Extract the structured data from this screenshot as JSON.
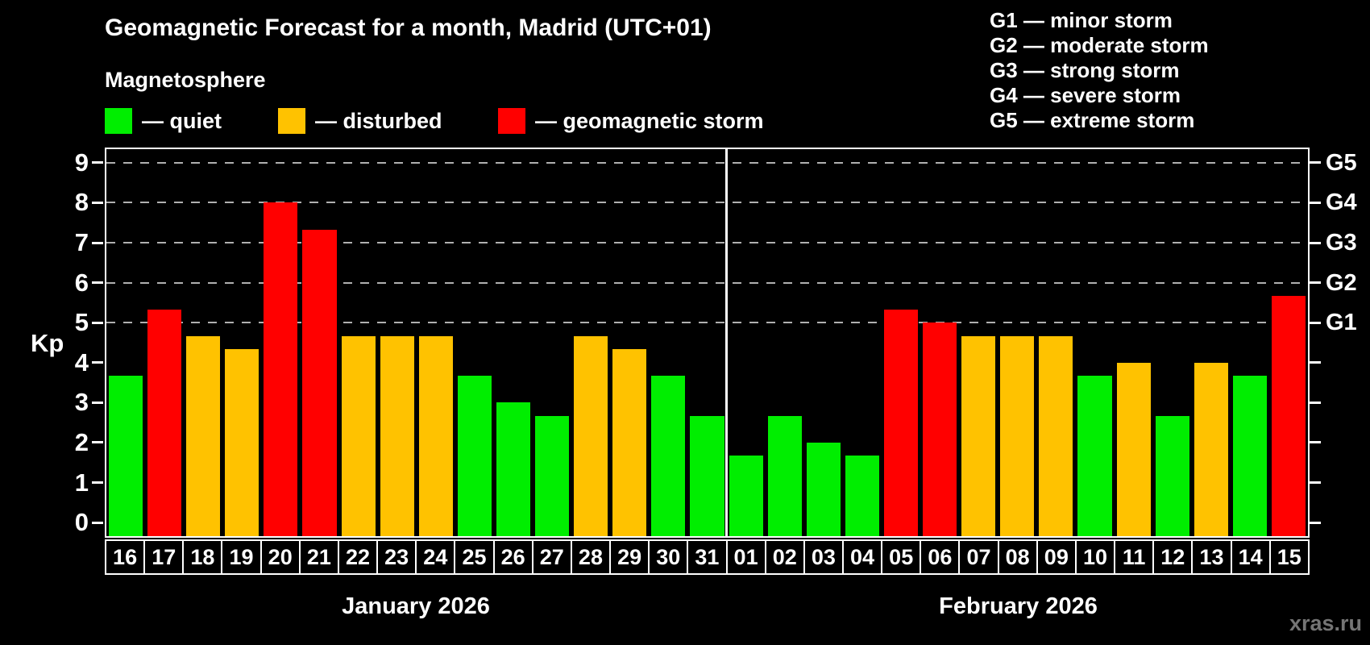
{
  "title": "Geomagnetic Forecast for a month, Madrid (UTC+01)",
  "subtitle": "Magnetosphere",
  "legend": {
    "items": [
      {
        "name": "quiet",
        "label": "— quiet",
        "color": "#00ee00"
      },
      {
        "name": "disturbed",
        "label": "— disturbed",
        "color": "#ffc200"
      },
      {
        "name": "storm",
        "label": "— geomagnetic storm",
        "color": "#ff0000"
      }
    ]
  },
  "g_scale_legend": [
    "G1 — minor storm",
    "G2 — moderate storm",
    "G3 — strong storm",
    "G4 — severe storm",
    "G5 — extreme storm"
  ],
  "watermark": "xras.ru",
  "chart_data": {
    "type": "bar",
    "title": "Geomagnetic Forecast for a month, Madrid (UTC+01)",
    "ylabel": "Kp",
    "ylim": [
      -0.34,
      9.34
    ],
    "yticks": [
      0,
      1,
      2,
      3,
      4,
      5,
      6,
      7,
      8,
      9
    ],
    "gridlines_at": [
      5,
      6,
      7,
      8,
      9
    ],
    "grid": true,
    "right_axis": [
      {
        "kp": 5,
        "label": "G1"
      },
      {
        "kp": 6,
        "label": "G2"
      },
      {
        "kp": 7,
        "label": "G3"
      },
      {
        "kp": 8,
        "label": "G4"
      },
      {
        "kp": 9,
        "label": "G5"
      }
    ],
    "months": [
      {
        "label": "January 2026",
        "days": [
          {
            "day": "16",
            "kp": 3.67,
            "status": "quiet"
          },
          {
            "day": "17",
            "kp": 5.33,
            "status": "storm"
          },
          {
            "day": "18",
            "kp": 4.67,
            "status": "disturbed"
          },
          {
            "day": "19",
            "kp": 4.33,
            "status": "disturbed"
          },
          {
            "day": "20",
            "kp": 8.0,
            "status": "storm"
          },
          {
            "day": "21",
            "kp": 7.33,
            "status": "storm"
          },
          {
            "day": "22",
            "kp": 4.67,
            "status": "disturbed"
          },
          {
            "day": "23",
            "kp": 4.67,
            "status": "disturbed"
          },
          {
            "day": "24",
            "kp": 4.67,
            "status": "disturbed"
          },
          {
            "day": "25",
            "kp": 3.67,
            "status": "quiet"
          },
          {
            "day": "26",
            "kp": 3.0,
            "status": "quiet"
          },
          {
            "day": "27",
            "kp": 2.67,
            "status": "quiet"
          },
          {
            "day": "28",
            "kp": 4.67,
            "status": "disturbed"
          },
          {
            "day": "29",
            "kp": 4.33,
            "status": "disturbed"
          },
          {
            "day": "30",
            "kp": 3.67,
            "status": "quiet"
          },
          {
            "day": "31",
            "kp": 2.67,
            "status": "quiet"
          }
        ]
      },
      {
        "label": "February 2026",
        "days": [
          {
            "day": "01",
            "kp": 1.67,
            "status": "quiet"
          },
          {
            "day": "02",
            "kp": 2.67,
            "status": "quiet"
          },
          {
            "day": "03",
            "kp": 2.0,
            "status": "quiet"
          },
          {
            "day": "04",
            "kp": 1.67,
            "status": "quiet"
          },
          {
            "day": "05",
            "kp": 5.33,
            "status": "storm"
          },
          {
            "day": "06",
            "kp": 5.0,
            "status": "storm"
          },
          {
            "day": "07",
            "kp": 4.67,
            "status": "disturbed"
          },
          {
            "day": "08",
            "kp": 4.67,
            "status": "disturbed"
          },
          {
            "day": "09",
            "kp": 4.67,
            "status": "disturbed"
          },
          {
            "day": "10",
            "kp": 3.67,
            "status": "quiet"
          },
          {
            "day": "11",
            "kp": 4.0,
            "status": "disturbed"
          },
          {
            "day": "12",
            "kp": 2.67,
            "status": "quiet"
          },
          {
            "day": "13",
            "kp": 4.0,
            "status": "disturbed"
          },
          {
            "day": "14",
            "kp": 3.67,
            "status": "quiet"
          },
          {
            "day": "15",
            "kp": 5.67,
            "status": "storm"
          }
        ]
      }
    ]
  }
}
